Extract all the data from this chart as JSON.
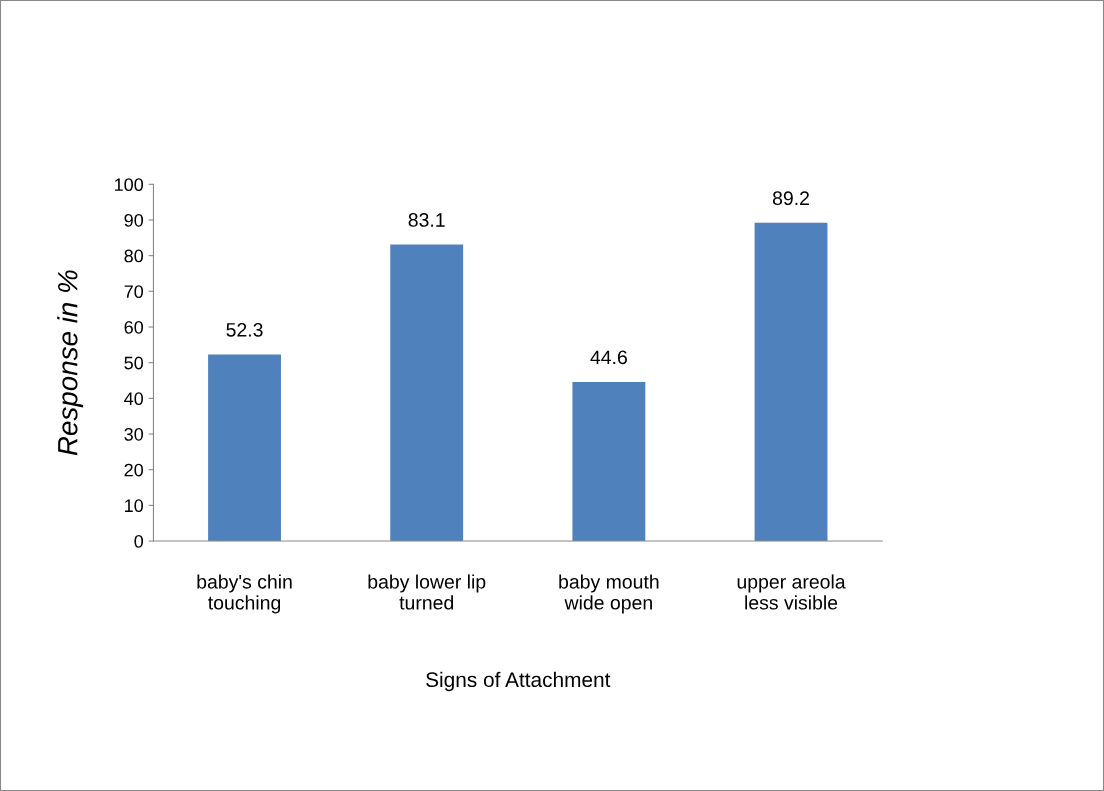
{
  "chart_data": {
    "type": "bar",
    "categories": [
      "baby's chin\ntouching",
      "baby lower lip\nturned",
      "baby mouth\nwide open",
      "upper areola\nless visible"
    ],
    "values": [
      52.3,
      83.1,
      44.6,
      89.2
    ],
    "color": "#4f81bd",
    "xlabel": "Signs of Attachment",
    "ylabel": "Response in %",
    "ylim": [
      0,
      100
    ],
    "yticks": [
      0,
      10,
      20,
      30,
      40,
      50,
      60,
      70,
      80,
      90,
      100
    ],
    "data_labels": true,
    "grid": false,
    "legend": false
  }
}
